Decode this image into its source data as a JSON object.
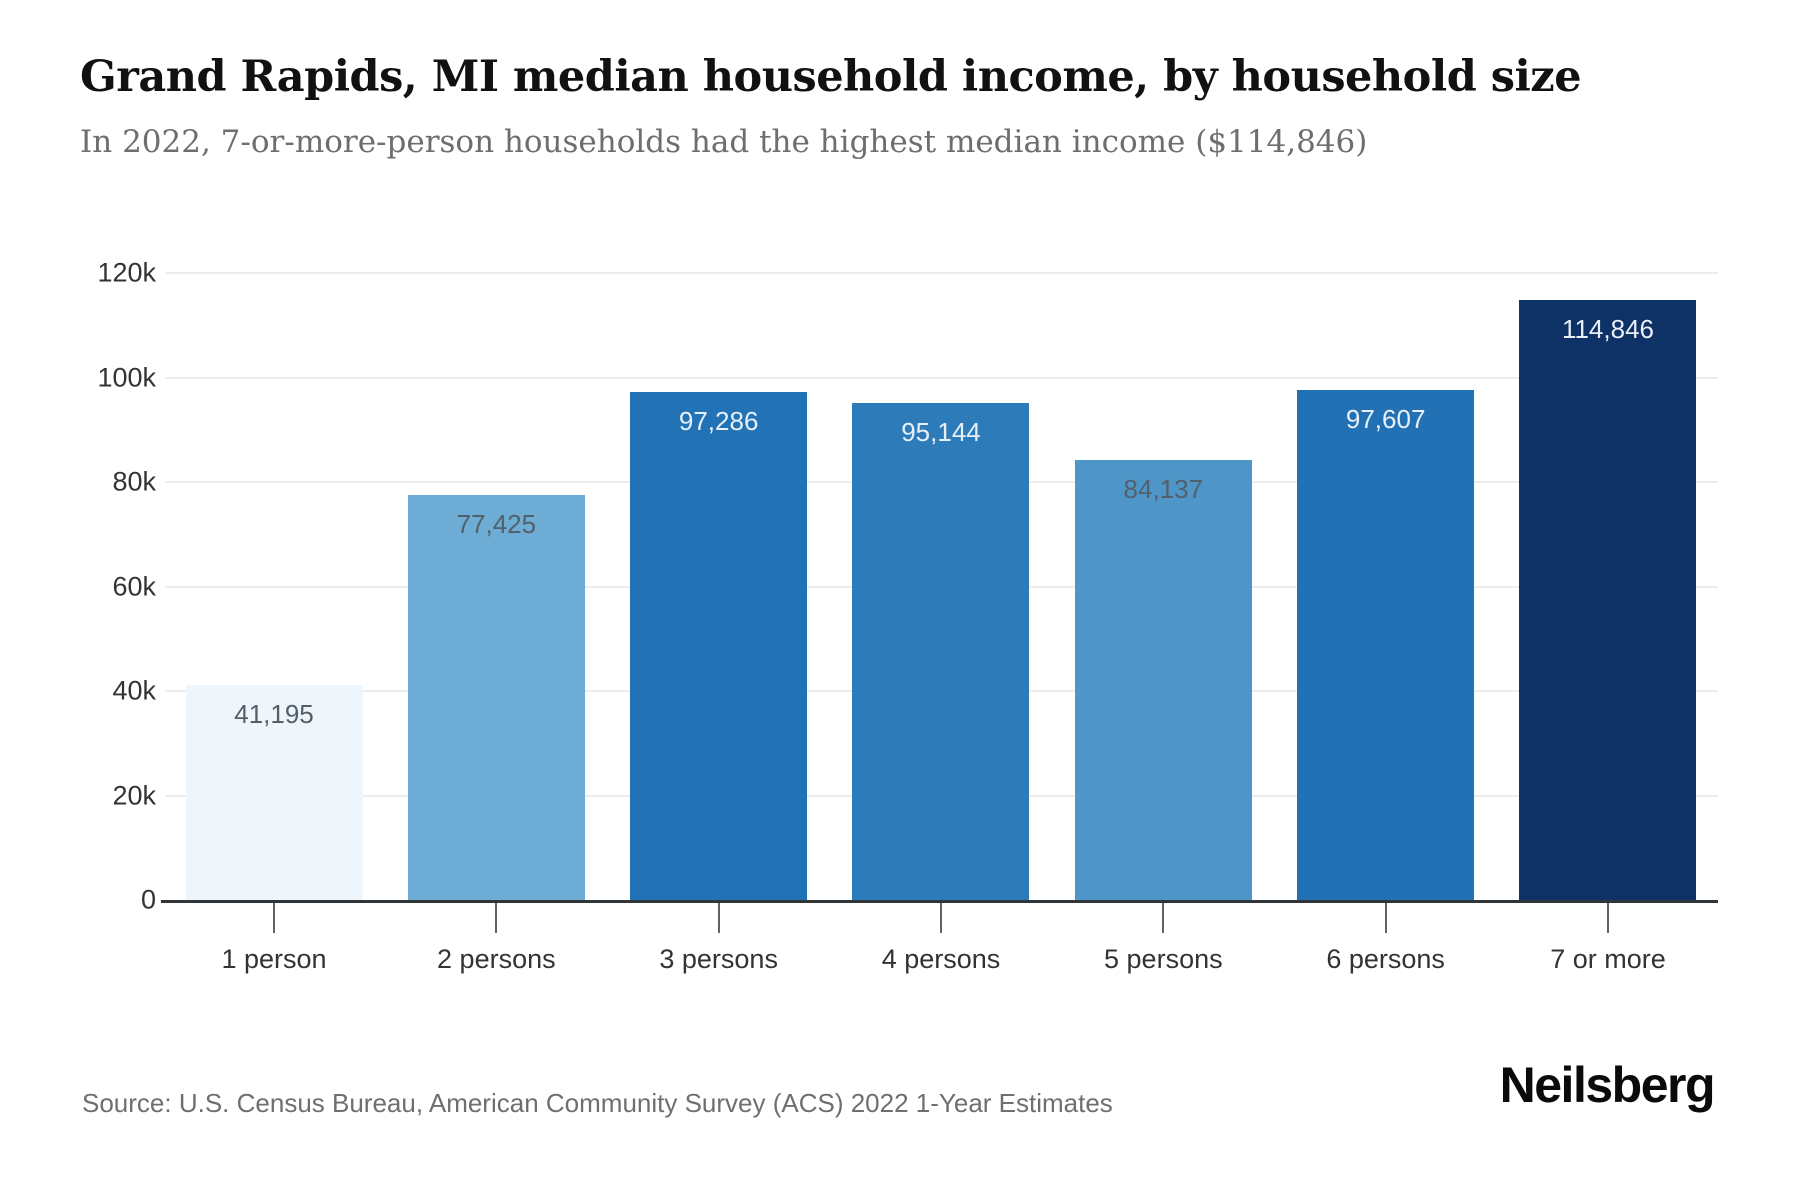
{
  "header": {
    "title": "Grand Rapids, MI median household income, by household size",
    "subtitle": "In 2022, 7-or-more-person households had the highest median income ($114,846)"
  },
  "footer": {
    "source": "Source: U.S. Census Bureau, American Community Survey (ACS) 2022 1-Year Estimates",
    "brand": "Neilsberg"
  },
  "chart_data": {
    "type": "bar",
    "title": "Grand Rapids, MI median household income, by household size",
    "xlabel": "",
    "ylabel": "",
    "categories": [
      "1 person",
      "2 persons",
      "3 persons",
      "4 persons",
      "5 persons",
      "6 persons",
      "7 or more"
    ],
    "values": [
      41195,
      77425,
      97286,
      95144,
      84137,
      97607,
      114846
    ],
    "value_labels": [
      "41,195",
      "77,425",
      "97,286",
      "95,144",
      "84,137",
      "97,607",
      "114,846"
    ],
    "bar_colors": [
      "#eef5fb",
      "#6cacd5",
      "#2173b5",
      "#2e7bba",
      "#4f96c8",
      "#2171b4",
      "#0e3166"
    ],
    "value_label_colors": [
      "#53606b",
      "#53606b",
      "#e8eff7",
      "#e8eff7",
      "#53606b",
      "#e8eff7",
      "#e8eff7"
    ],
    "ylim": [
      0,
      120000
    ],
    "yticks": [
      {
        "value": 0,
        "label": "0"
      },
      {
        "value": 20000,
        "label": "20k"
      },
      {
        "value": 40000,
        "label": "40k"
      },
      {
        "value": 60000,
        "label": "60k"
      },
      {
        "value": 80000,
        "label": "80k"
      },
      {
        "value": 100000,
        "label": "100k"
      },
      {
        "value": 120000,
        "label": "120k"
      }
    ],
    "grid": true,
    "legend": "none",
    "grid_color": "#ededed",
    "axis_color": "#30353a",
    "tick_color": "#5f6368"
  }
}
